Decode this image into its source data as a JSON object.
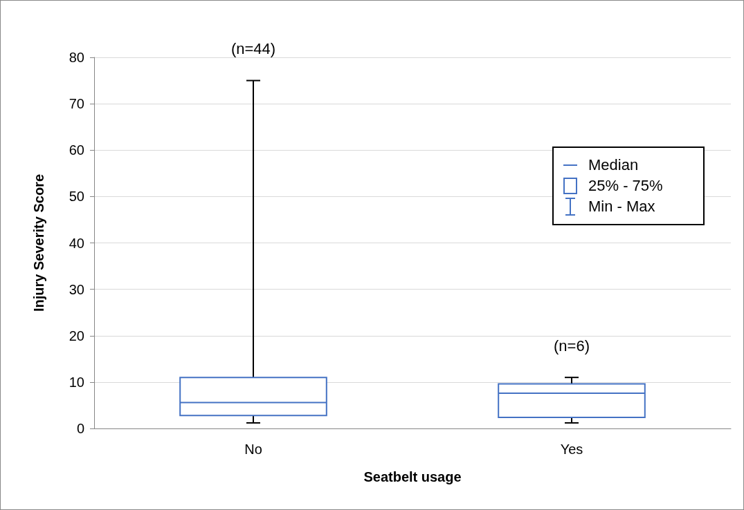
{
  "chart_data": {
    "type": "box",
    "xlabel": "Seatbelt usage",
    "ylabel": "Injury Severity Score",
    "categories": [
      "No",
      "Yes"
    ],
    "series": [
      {
        "color": "#4472c4",
        "boxes": [
          {
            "low": 1.2,
            "q1": 2.8,
            "median": 5.6,
            "q3": 11,
            "high": 75
          },
          {
            "low": 1.2,
            "q1": 2.4,
            "median": 7.6,
            "q3": 9.6,
            "high": 11
          }
        ]
      }
    ],
    "ylim": [
      0,
      80
    ],
    "yticks": [
      0,
      10,
      20,
      30,
      40,
      50,
      60,
      70,
      80
    ],
    "grid": "y",
    "annotations": [
      "(n=44)",
      "(n=6)",
      "Median",
      "25% - 75%",
      "Min - Max"
    ]
  }
}
